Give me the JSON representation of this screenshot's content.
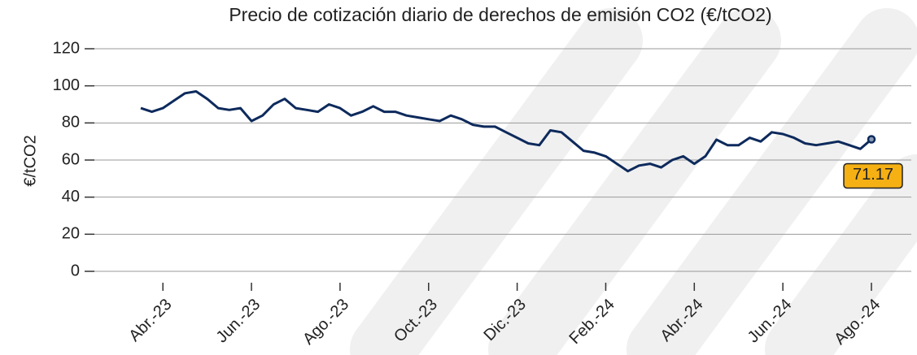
{
  "chart_data": {
    "type": "line",
    "title": "Precio de cotización diario de derechos de emisión CO2 (€/tCO2)",
    "ylabel": "€/tCO2",
    "categories": [
      null,
      null,
      "Abr.-23",
      null,
      null,
      null,
      null,
      null,
      null,
      null,
      "Jun.-23",
      null,
      null,
      null,
      null,
      null,
      null,
      null,
      "Ago.-23",
      null,
      null,
      null,
      null,
      null,
      null,
      null,
      "Oct.-23",
      null,
      null,
      null,
      null,
      null,
      null,
      null,
      "Dic.-23",
      null,
      null,
      null,
      null,
      null,
      null,
      null,
      "Feb.-24",
      null,
      null,
      null,
      null,
      null,
      null,
      null,
      "Abr.-24",
      null,
      null,
      null,
      null,
      null,
      null,
      null,
      "Jun.-24",
      null,
      null,
      null,
      null,
      null,
      null,
      null,
      "Ago.-24"
    ],
    "series": [
      {
        "name": "Precio",
        "color": "#0d2a5c",
        "values": [
          88,
          86,
          88,
          92,
          96,
          97,
          93,
          88,
          87,
          88,
          81,
          84,
          90,
          93,
          88,
          87,
          86,
          90,
          88,
          84,
          86,
          89,
          86,
          86,
          84,
          83,
          82,
          81,
          84,
          82,
          79,
          78,
          78,
          75,
          72,
          69,
          68,
          76,
          75,
          70,
          65,
          64,
          62,
          58,
          54,
          57,
          58,
          56,
          60,
          62,
          58,
          62,
          71,
          68,
          68,
          72,
          70,
          75,
          74,
          72,
          69,
          68,
          69,
          70,
          68,
          66,
          71.17
        ]
      }
    ],
    "ylim": [
      0,
      120
    ],
    "yticks": [
      0,
      20,
      40,
      60,
      80,
      100,
      120
    ],
    "grid": true
  }
}
